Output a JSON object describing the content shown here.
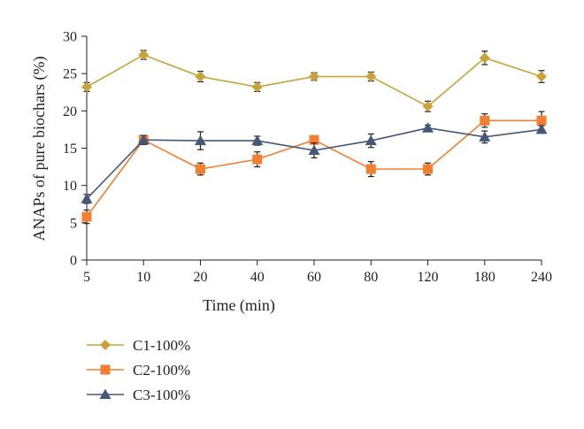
{
  "chart_data": {
    "type": "line",
    "xlabel": "Time (min)",
    "ylabel": "ANAPs of pure biochars (%)",
    "categories": [
      "5",
      "10",
      "20",
      "40",
      "60",
      "80",
      "120",
      "180",
      "240"
    ],
    "ylim": [
      0,
      30
    ],
    "yticks": [
      0,
      5,
      10,
      15,
      20,
      25,
      30
    ],
    "grid": false,
    "legend_position": "bottom-left",
    "series": [
      {
        "name": "C1-100%",
        "marker": "diamond",
        "color": "#c9a23a",
        "values": [
          23.2,
          27.5,
          24.6,
          23.2,
          24.6,
          24.6,
          20.6,
          27.1,
          24.6
        ],
        "errors": [
          0.6,
          0.6,
          0.7,
          0.6,
          0.5,
          0.6,
          0.7,
          0.9,
          0.8
        ]
      },
      {
        "name": "C2-100%",
        "marker": "square",
        "color": "#f47f30",
        "values": [
          5.8,
          16.1,
          12.2,
          13.5,
          16.1,
          12.2,
          12.2,
          18.7,
          18.7
        ],
        "errors": [
          0.9,
          0.6,
          0.8,
          1.0,
          0.0,
          1.0,
          0.8,
          0.9,
          1.2
        ]
      },
      {
        "name": "C3-100%",
        "marker": "triangle",
        "color": "#45587a",
        "values": [
          8.2,
          16.1,
          16.0,
          16.0,
          14.7,
          16.0,
          17.7,
          16.5,
          17.5
        ],
        "errors": [
          0.6,
          0.6,
          1.2,
          0.6,
          1.0,
          0.9,
          0.4,
          0.8,
          0.5
        ]
      }
    ]
  }
}
